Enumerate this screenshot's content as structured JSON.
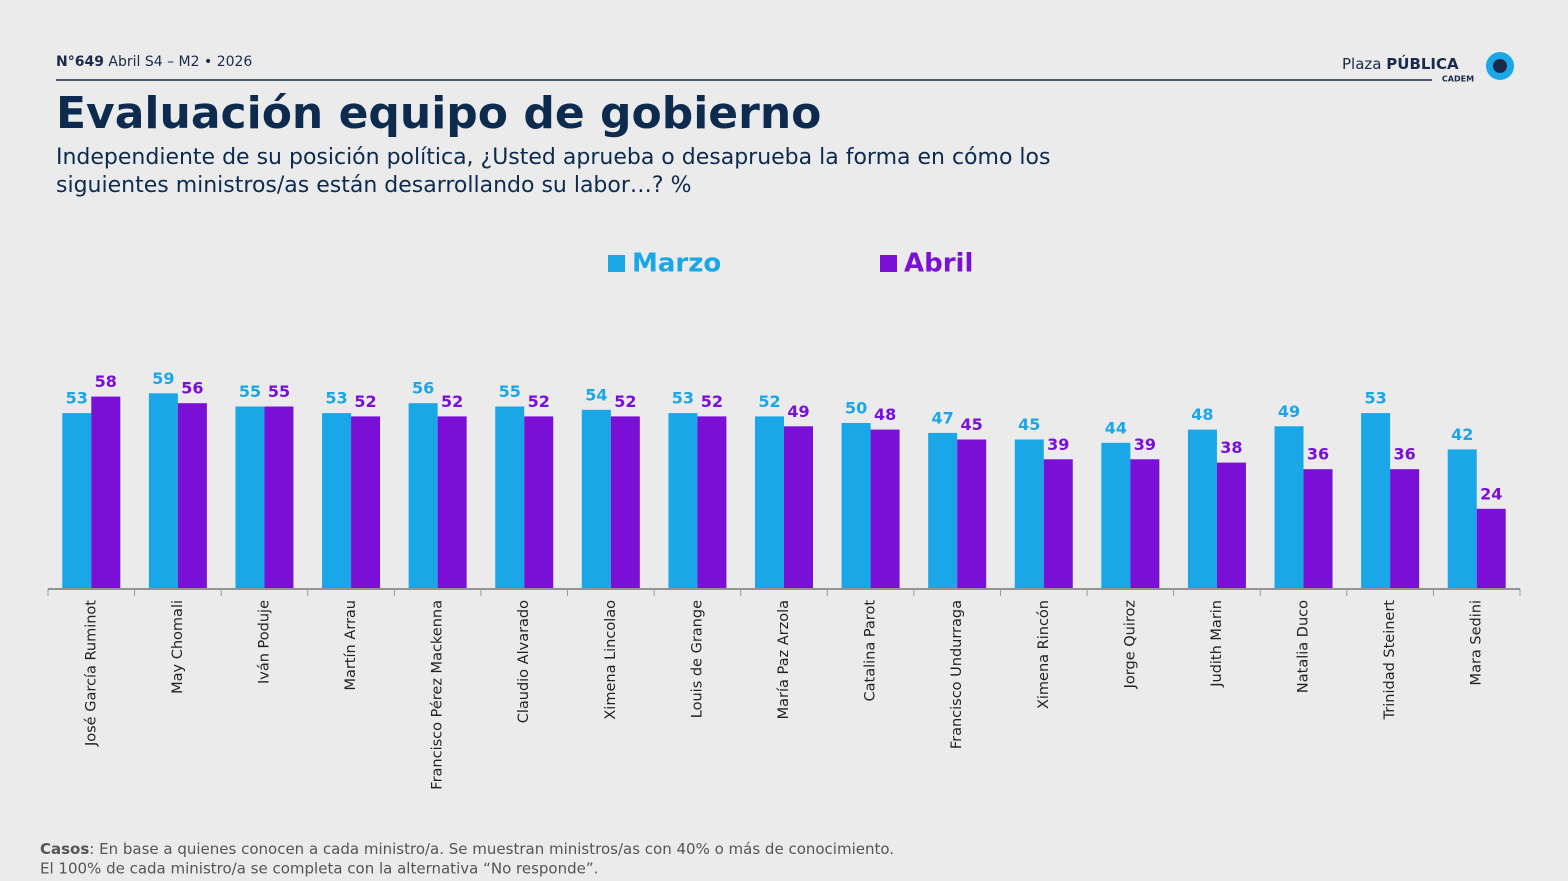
{
  "header": {
    "issue": "N°649",
    "edition": "Abril S4 – M2 • 2026",
    "brand_left": "Plaza",
    "brand_right": "PÚBLICA",
    "brand_sub": "CADEM"
  },
  "chart_data": {
    "type": "bar",
    "title": "Evaluación equipo de gobierno",
    "subtitle": "Independiente de su posición política, ¿Usted aprueba o desaprueba la forma en cómo los siguientes ministros/as están desarrollando su labor…? %",
    "categories": [
      "José García Ruminot",
      "May Chomali",
      "Iván Poduje",
      "Martín Arrau",
      "Francisco Pérez Mackenna",
      "Claudio Alvarado",
      "Ximena Lincolao",
      "Louis de Grange",
      "María Paz Arzola",
      "Catalina Parot",
      "Francisco Undurraga",
      "Ximena Rincón",
      "Jorge Quiroz",
      "Judith Marin",
      "Natalia Duco",
      "Trinidad Steinert",
      "Mara Sedini"
    ],
    "series": [
      {
        "name": "Marzo",
        "color": "#1aa7e8",
        "values": [
          53,
          59,
          55,
          53,
          56,
          55,
          54,
          53,
          52,
          50,
          47,
          45,
          44,
          48,
          49,
          53,
          42
        ]
      },
      {
        "name": "Abril",
        "color": "#7a0fd8",
        "values": [
          58,
          56,
          55,
          52,
          52,
          52,
          52,
          52,
          49,
          48,
          45,
          39,
          39,
          38,
          36,
          36,
          24
        ]
      }
    ],
    "ylim": [
      0,
      60
    ],
    "legend": "top"
  },
  "footer": {
    "label": "Casos",
    "line1": ": En base a quienes conocen a cada ministro/a. Se muestran ministros/as con 40% o más de conocimiento.",
    "line2": "El 100% de cada ministro/a se completa con la alternativa “No responde”."
  }
}
